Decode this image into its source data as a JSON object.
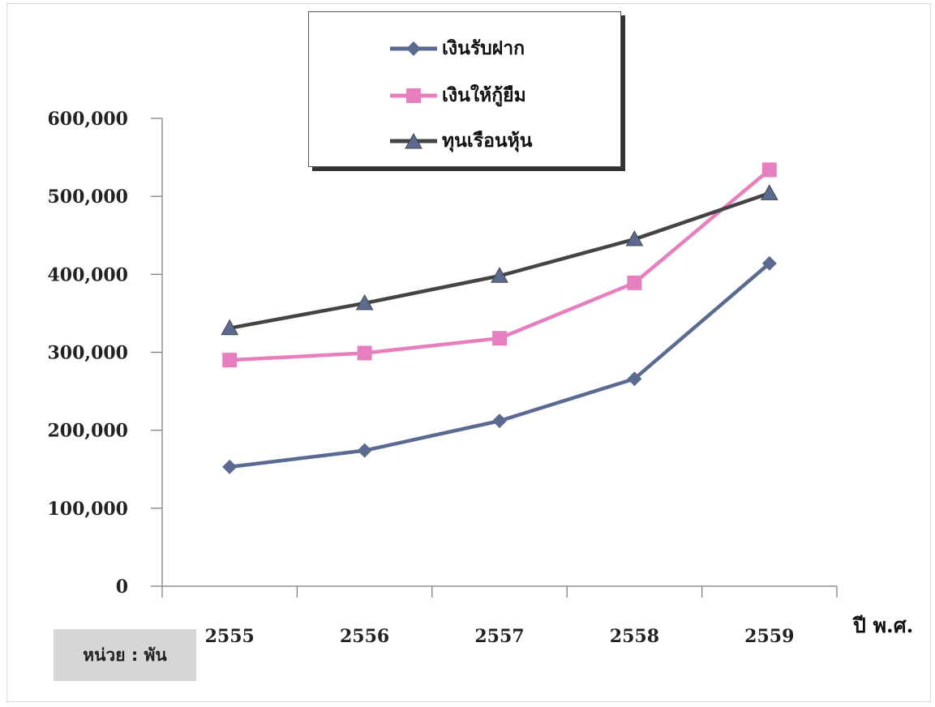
{
  "chart_data": {
    "type": "line",
    "categories": [
      "2555",
      "2556",
      "2557",
      "2558",
      "2559"
    ],
    "series": [
      {
        "name": "เงินรับฝาก",
        "color": "#5b6a91",
        "marker": "diamond",
        "values": [
          153000,
          174000,
          212000,
          266000,
          414000
        ]
      },
      {
        "name": "เงินให้กู้ยืม",
        "color": "#e77fbf",
        "marker": "square",
        "values": [
          290000,
          299000,
          318000,
          389000,
          534000
        ]
      },
      {
        "name": "ทุนเรือนหุ้น",
        "color": "#444444",
        "marker": "triangle",
        "values": [
          331000,
          363000,
          398000,
          445000,
          504000
        ]
      }
    ],
    "y_ticks": [
      "0",
      "100,000",
      "200,000",
      "300,000",
      "400,000",
      "500,000",
      "600,000"
    ],
    "ylim": [
      0,
      600000
    ],
    "xlabel": "ปี พ.ศ.",
    "unit_label": "หน่วย : พัน",
    "legend_position": "top-center",
    "grid": false
  }
}
